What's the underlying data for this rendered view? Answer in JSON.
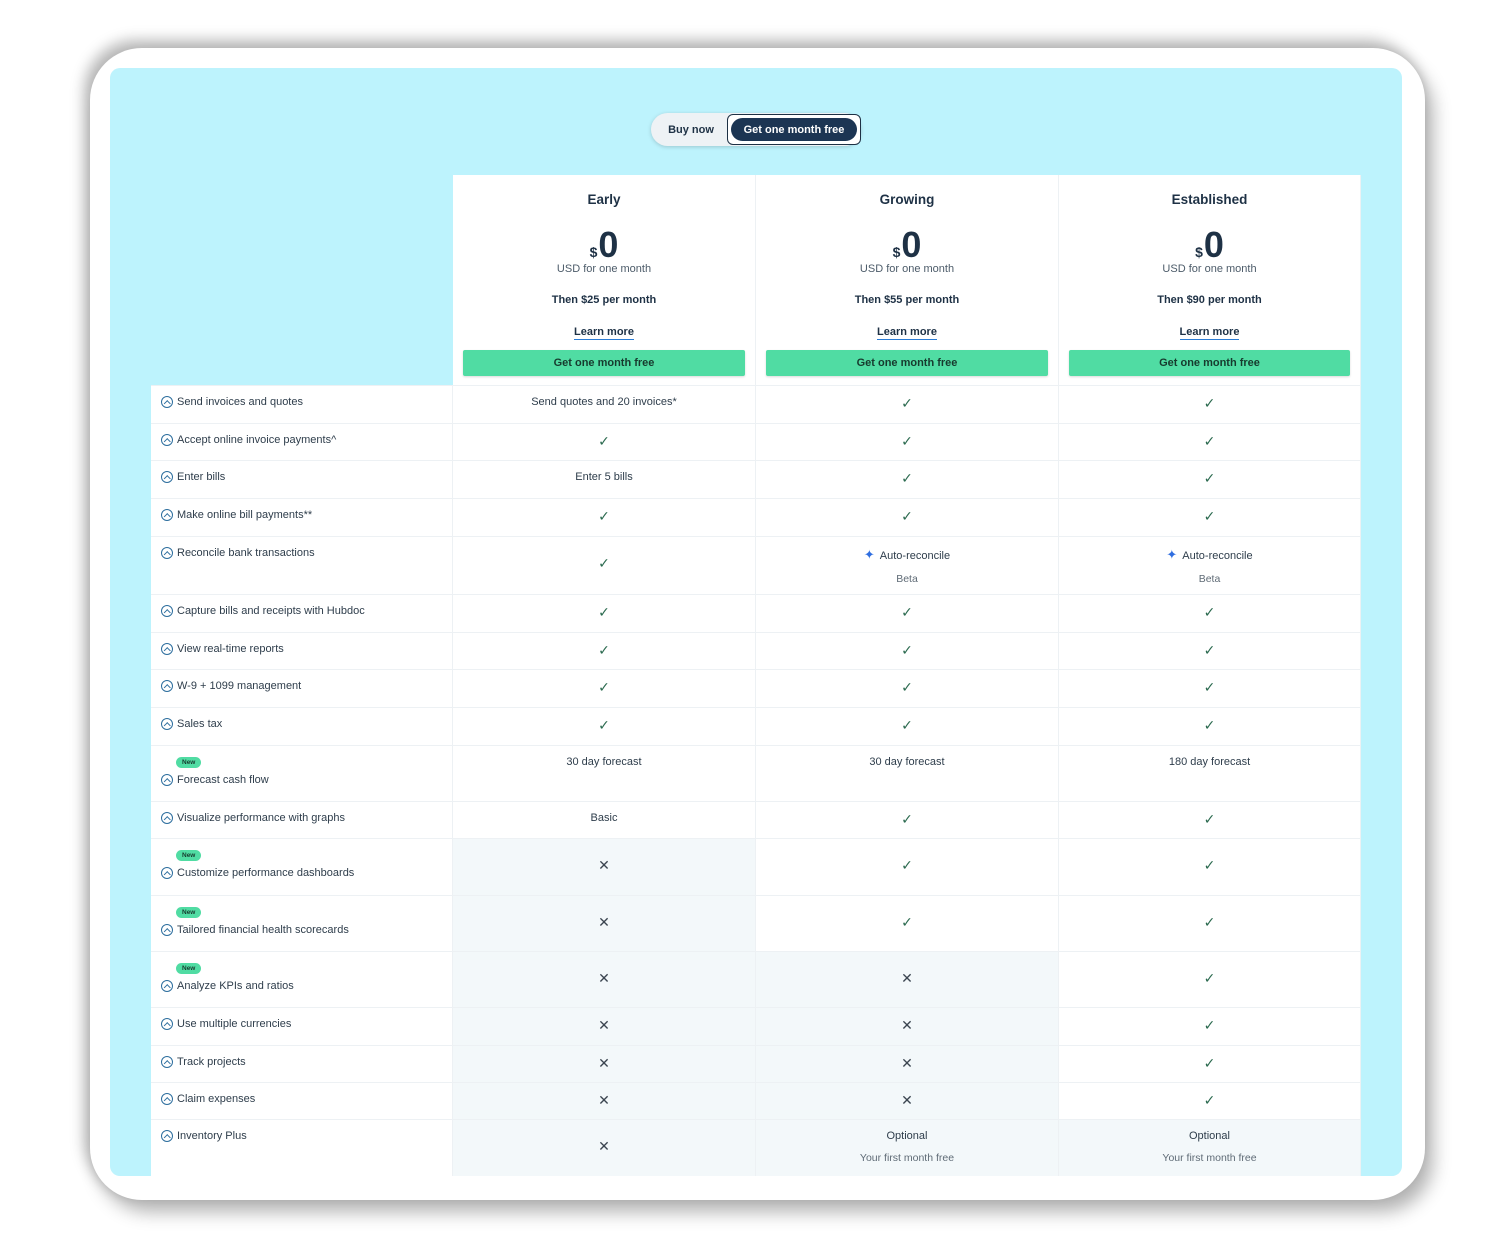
{
  "toggle": {
    "buy_now": "Buy now",
    "free_month": "Get one month free",
    "selected": "Get one month free"
  },
  "plans": [
    {
      "name": "Early",
      "currency": "$",
      "amount": "0",
      "period": "USD for one month",
      "then": "Then $25 per month",
      "learn_more": "Learn more",
      "cta": "Get one month free"
    },
    {
      "name": "Growing",
      "currency": "$",
      "amount": "0",
      "period": "USD for one month",
      "then": "Then $55 per month",
      "learn_more": "Learn more",
      "cta": "Get one month free"
    },
    {
      "name": "Established",
      "currency": "$",
      "amount": "0",
      "period": "USD for one month",
      "then": "Then $90 per month",
      "learn_more": "Learn more",
      "cta": "Get one month free"
    }
  ],
  "badge_new": "New",
  "icons": {
    "check": "✓",
    "cross": "✕",
    "sparkle": "✦",
    "expand": "chevron-up-circle-icon"
  },
  "colors": {
    "panel": "#bdf3fd",
    "cta": "#50dca3",
    "toggle_active": "#1c3553",
    "text": "#1e3145",
    "check": "#2b6a4f",
    "unavailable_bg": "#f3f8fa"
  },
  "features": [
    {
      "label": "Send invoices and quotes",
      "new": false,
      "values": [
        {
          "t": "text",
          "v": "Send quotes and 20 invoices*"
        },
        {
          "t": "check"
        },
        {
          "t": "check"
        }
      ]
    },
    {
      "label": "Accept online invoice payments^",
      "new": false,
      "values": [
        {
          "t": "check"
        },
        {
          "t": "check"
        },
        {
          "t": "check"
        }
      ]
    },
    {
      "label": "Enter bills",
      "new": false,
      "values": [
        {
          "t": "text",
          "v": "Enter 5 bills"
        },
        {
          "t": "check"
        },
        {
          "t": "check"
        }
      ]
    },
    {
      "label": "Make online bill payments**",
      "new": false,
      "values": [
        {
          "t": "check"
        },
        {
          "t": "check"
        },
        {
          "t": "check"
        }
      ]
    },
    {
      "label": "Reconcile bank transactions",
      "new": false,
      "values": [
        {
          "t": "check"
        },
        {
          "t": "auto",
          "v": "Auto-reconcile",
          "s": "Beta"
        },
        {
          "t": "auto",
          "v": "Auto-reconcile",
          "s": "Beta"
        }
      ]
    },
    {
      "label": "Capture bills and receipts with Hubdoc",
      "new": false,
      "values": [
        {
          "t": "check"
        },
        {
          "t": "check"
        },
        {
          "t": "check"
        }
      ]
    },
    {
      "label": "View real-time reports",
      "new": false,
      "values": [
        {
          "t": "check"
        },
        {
          "t": "check"
        },
        {
          "t": "check"
        }
      ]
    },
    {
      "label": "W-9 + 1099 management",
      "new": false,
      "values": [
        {
          "t": "check"
        },
        {
          "t": "check"
        },
        {
          "t": "check"
        }
      ]
    },
    {
      "label": "Sales tax",
      "new": false,
      "values": [
        {
          "t": "check"
        },
        {
          "t": "check"
        },
        {
          "t": "check"
        }
      ]
    },
    {
      "label": "Forecast cash flow",
      "new": true,
      "values": [
        {
          "t": "text",
          "v": "30 day forecast"
        },
        {
          "t": "text",
          "v": "30 day forecast"
        },
        {
          "t": "text",
          "v": "180 day forecast"
        }
      ]
    },
    {
      "label": "Visualize performance with graphs",
      "new": false,
      "values": [
        {
          "t": "text",
          "v": "Basic"
        },
        {
          "t": "check"
        },
        {
          "t": "check"
        }
      ]
    },
    {
      "label": "Customize performance dashboards",
      "new": true,
      "values": [
        {
          "t": "cross"
        },
        {
          "t": "check"
        },
        {
          "t": "check"
        }
      ]
    },
    {
      "label": "Tailored financial health scorecards",
      "new": true,
      "values": [
        {
          "t": "cross"
        },
        {
          "t": "check"
        },
        {
          "t": "check"
        }
      ]
    },
    {
      "label": "Analyze KPIs and ratios",
      "new": true,
      "values": [
        {
          "t": "cross"
        },
        {
          "t": "cross"
        },
        {
          "t": "check"
        }
      ]
    },
    {
      "label": "Use multiple currencies",
      "new": false,
      "values": [
        {
          "t": "cross"
        },
        {
          "t": "cross"
        },
        {
          "t": "check"
        }
      ]
    },
    {
      "label": "Track projects",
      "new": false,
      "values": [
        {
          "t": "cross"
        },
        {
          "t": "cross"
        },
        {
          "t": "check"
        }
      ]
    },
    {
      "label": "Claim expenses",
      "new": false,
      "values": [
        {
          "t": "cross"
        },
        {
          "t": "cross"
        },
        {
          "t": "check"
        }
      ]
    },
    {
      "label": "Inventory Plus",
      "new": false,
      "values": [
        {
          "t": "cross"
        },
        {
          "t": "opt",
          "v": "Optional",
          "s": "Your first month free"
        },
        {
          "t": "opt",
          "v": "Optional",
          "s": "Your first month free"
        }
      ]
    }
  ]
}
